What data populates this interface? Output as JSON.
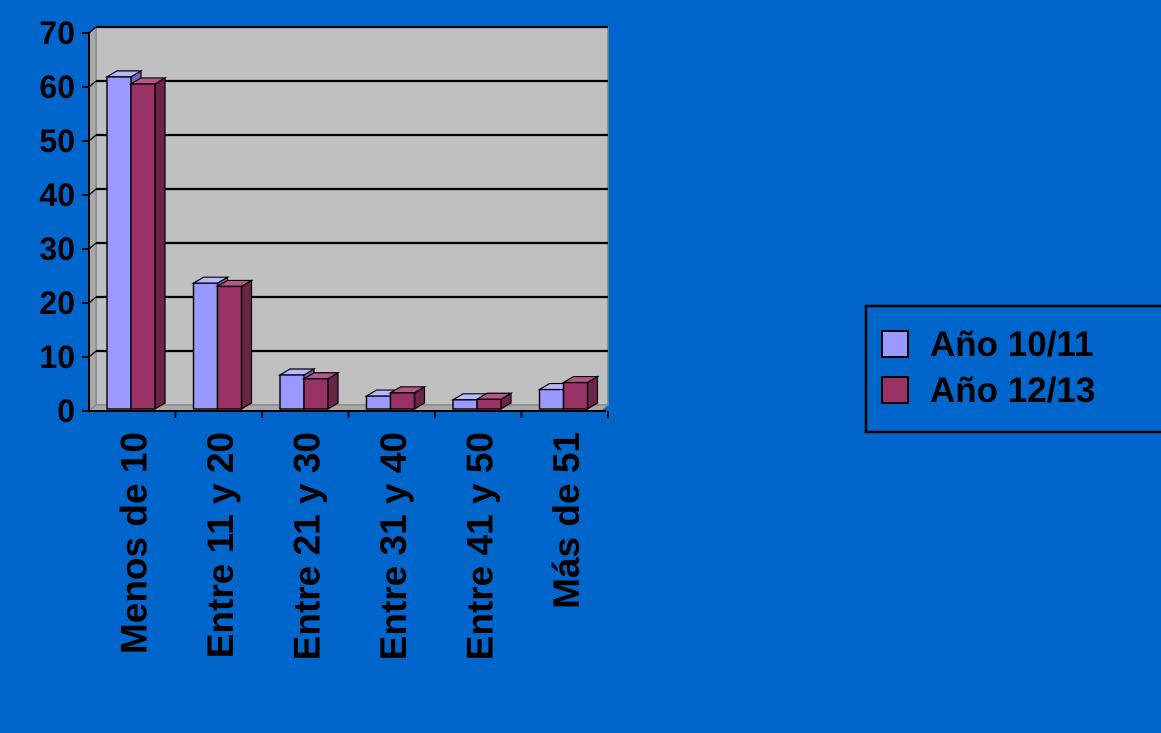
{
  "chart_data": {
    "type": "bar",
    "title": "",
    "xlabel": "",
    "ylabel": "",
    "ylim": [
      0,
      70
    ],
    "yticks": [
      0,
      10,
      20,
      30,
      40,
      50,
      60,
      70
    ],
    "categories": [
      "Menos de 10",
      "Entre 11 y 20",
      "Entre 21 y 30",
      "Entre 31 y 40",
      "Entre 41 y 50",
      "Más de 51"
    ],
    "series": [
      {
        "name": "Año 10/11",
        "values": [
          61.5,
          23.3,
          6.3,
          2.4,
          1.7,
          3.6
        ]
      },
      {
        "name": "Año 12/13",
        "values": [
          60.2,
          22.7,
          5.6,
          3.0,
          1.8,
          4.9
        ]
      }
    ],
    "grid": true,
    "legend": "right",
    "three_d": true
  },
  "colors": {
    "background": "#0066CC",
    "plot_area": "#C0C0C0",
    "series": [
      "#9999FF",
      "#993366"
    ],
    "series_top": [
      "#B8B8FF",
      "#B35985"
    ],
    "series_side": [
      "#6B6BB3",
      "#6B2447"
    ],
    "text": "#000000"
  }
}
